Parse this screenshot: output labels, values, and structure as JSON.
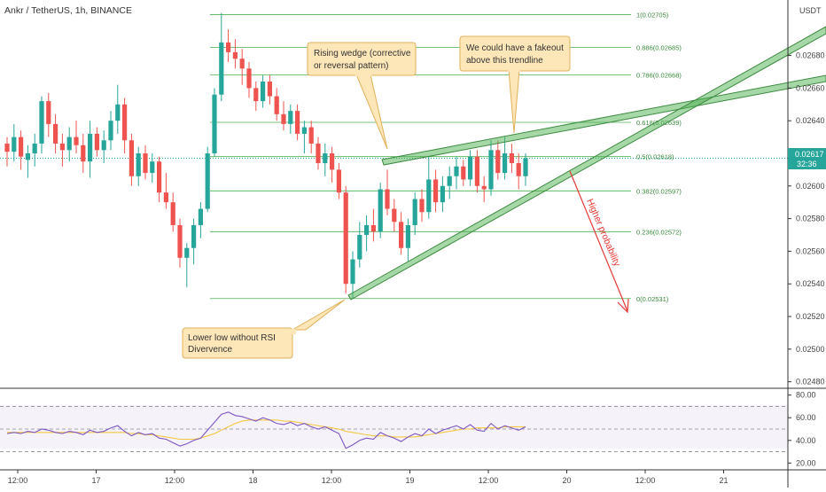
{
  "header": {
    "symbol": "Ankr / TetherUS, 1h, BINANCE"
  },
  "price_axis": {
    "currency": "USDT",
    "ticks": [
      "0.02680",
      "0.02660",
      "0.02640",
      "0.02620",
      "0.02600",
      "0.02580",
      "0.02560",
      "0.02540",
      "0.02520",
      "0.02500",
      "0.02480"
    ],
    "last_price": "0.02617",
    "countdown": "32:36"
  },
  "rsi_axis": {
    "ticks": [
      "80.00",
      "60.00",
      "40.00",
      "20.00"
    ]
  },
  "time_axis": {
    "ticks": [
      "12:00",
      "17",
      "12:00",
      "18",
      "12:00",
      "19",
      "12:00",
      "20",
      "12:00",
      "21"
    ]
  },
  "fib_labels": [
    "1(0.02705)",
    "0.886(0.02685)",
    "0.786(0.02668)",
    "0.618(0.02639)",
    "0.5(0.02618)",
    "0.382(0.02597)",
    "0.236(0.02572)",
    "0(0.02531)"
  ],
  "annotations": {
    "wedge": [
      "Rising wedge (corrective",
      "or reversal pattern)"
    ],
    "fakeout": [
      "We could have a fakeout",
      "above this trendline"
    ],
    "lowerlow": [
      "Lower low without RSI",
      "Divervence"
    ],
    "probability": "Higher probability"
  },
  "colors": {
    "up": "#26a69a",
    "down": "#ef5350",
    "fib": "#4caf50",
    "rsi": "#7e57c2",
    "rsi_ma": "#f5c842",
    "callout_bg": "#fde7b9",
    "callout_border": "#e0b15a"
  },
  "chart_data": {
    "type": "candlestick",
    "title": "Ankr / TetherUS, 1h, BINANCE",
    "ylim": [
      0.02476,
      0.02714
    ],
    "candles": [
      {
        "o": 0.02626,
        "h": 0.0263,
        "l": 0.02612,
        "c": 0.02621
      },
      {
        "o": 0.02621,
        "h": 0.02638,
        "l": 0.02615,
        "c": 0.0263
      },
      {
        "o": 0.0263,
        "h": 0.02634,
        "l": 0.0261,
        "c": 0.02618
      },
      {
        "o": 0.02616,
        "h": 0.02625,
        "l": 0.02605,
        "c": 0.0262
      },
      {
        "o": 0.0262,
        "h": 0.02632,
        "l": 0.02612,
        "c": 0.02626
      },
      {
        "o": 0.02626,
        "h": 0.02655,
        "l": 0.0262,
        "c": 0.02652
      },
      {
        "o": 0.02652,
        "h": 0.02657,
        "l": 0.0263,
        "c": 0.02638
      },
      {
        "o": 0.02638,
        "h": 0.02644,
        "l": 0.0262,
        "c": 0.02626
      },
      {
        "o": 0.02626,
        "h": 0.02632,
        "l": 0.02612,
        "c": 0.02622
      },
      {
        "o": 0.02622,
        "h": 0.02636,
        "l": 0.02615,
        "c": 0.0263
      },
      {
        "o": 0.0263,
        "h": 0.0264,
        "l": 0.0262,
        "c": 0.02625
      },
      {
        "o": 0.02625,
        "h": 0.02632,
        "l": 0.02608,
        "c": 0.02615
      },
      {
        "o": 0.02615,
        "h": 0.0264,
        "l": 0.02605,
        "c": 0.02632
      },
      {
        "o": 0.02632,
        "h": 0.02636,
        "l": 0.02618,
        "c": 0.02622
      },
      {
        "o": 0.02622,
        "h": 0.02634,
        "l": 0.02614,
        "c": 0.02628
      },
      {
        "o": 0.02628,
        "h": 0.02646,
        "l": 0.02622,
        "c": 0.0264
      },
      {
        "o": 0.0264,
        "h": 0.02662,
        "l": 0.02632,
        "c": 0.0265
      },
      {
        "o": 0.0265,
        "h": 0.02654,
        "l": 0.0262,
        "c": 0.02628
      },
      {
        "o": 0.02628,
        "h": 0.02632,
        "l": 0.026,
        "c": 0.02606
      },
      {
        "o": 0.02606,
        "h": 0.02624,
        "l": 0.026,
        "c": 0.0262
      },
      {
        "o": 0.0262,
        "h": 0.02625,
        "l": 0.02604,
        "c": 0.02608
      },
      {
        "o": 0.02608,
        "h": 0.0262,
        "l": 0.02602,
        "c": 0.02615
      },
      {
        "o": 0.02615,
        "h": 0.02618,
        "l": 0.0259,
        "c": 0.02596
      },
      {
        "o": 0.02596,
        "h": 0.02608,
        "l": 0.02586,
        "c": 0.0259
      },
      {
        "o": 0.0259,
        "h": 0.02596,
        "l": 0.02572,
        "c": 0.02576
      },
      {
        "o": 0.02576,
        "h": 0.0258,
        "l": 0.0255,
        "c": 0.02556
      },
      {
        "o": 0.02556,
        "h": 0.02565,
        "l": 0.02538,
        "c": 0.02562
      },
      {
        "o": 0.02562,
        "h": 0.0258,
        "l": 0.02552,
        "c": 0.02576
      },
      {
        "o": 0.02576,
        "h": 0.0259,
        "l": 0.02568,
        "c": 0.02586
      },
      {
        "o": 0.02586,
        "h": 0.02624,
        "l": 0.02584,
        "c": 0.0262
      },
      {
        "o": 0.0262,
        "h": 0.0266,
        "l": 0.02618,
        "c": 0.02656
      },
      {
        "o": 0.02656,
        "h": 0.02706,
        "l": 0.02652,
        "c": 0.02688
      },
      {
        "o": 0.02688,
        "h": 0.02696,
        "l": 0.02676,
        "c": 0.02682
      },
      {
        "o": 0.02682,
        "h": 0.0269,
        "l": 0.02672,
        "c": 0.02678
      },
      {
        "o": 0.02678,
        "h": 0.02684,
        "l": 0.02662,
        "c": 0.02672
      },
      {
        "o": 0.02672,
        "h": 0.02676,
        "l": 0.02654,
        "c": 0.0266
      },
      {
        "o": 0.0266,
        "h": 0.02664,
        "l": 0.02646,
        "c": 0.02652
      },
      {
        "o": 0.02652,
        "h": 0.02668,
        "l": 0.02648,
        "c": 0.02664
      },
      {
        "o": 0.02664,
        "h": 0.02668,
        "l": 0.0265,
        "c": 0.02655
      },
      {
        "o": 0.02655,
        "h": 0.0266,
        "l": 0.0264,
        "c": 0.02644
      },
      {
        "o": 0.02644,
        "h": 0.02652,
        "l": 0.02634,
        "c": 0.02638
      },
      {
        "o": 0.02638,
        "h": 0.0265,
        "l": 0.02632,
        "c": 0.02646
      },
      {
        "o": 0.02646,
        "h": 0.0265,
        "l": 0.02628,
        "c": 0.02632
      },
      {
        "o": 0.02632,
        "h": 0.0264,
        "l": 0.0262,
        "c": 0.02636
      },
      {
        "o": 0.02636,
        "h": 0.0264,
        "l": 0.0262,
        "c": 0.02626
      },
      {
        "o": 0.02626,
        "h": 0.0263,
        "l": 0.0261,
        "c": 0.02614
      },
      {
        "o": 0.02614,
        "h": 0.02626,
        "l": 0.02606,
        "c": 0.0262
      },
      {
        "o": 0.0262,
        "h": 0.02624,
        "l": 0.02602,
        "c": 0.0261
      },
      {
        "o": 0.0261,
        "h": 0.02614,
        "l": 0.02592,
        "c": 0.02596
      },
      {
        "o": 0.02596,
        "h": 0.026,
        "l": 0.02534,
        "c": 0.0254
      },
      {
        "o": 0.0254,
        "h": 0.0256,
        "l": 0.02531,
        "c": 0.02555
      },
      {
        "o": 0.02555,
        "h": 0.02578,
        "l": 0.0255,
        "c": 0.0257
      },
      {
        "o": 0.0257,
        "h": 0.02582,
        "l": 0.0256,
        "c": 0.02576
      },
      {
        "o": 0.02576,
        "h": 0.02586,
        "l": 0.02566,
        "c": 0.02572
      },
      {
        "o": 0.02572,
        "h": 0.02602,
        "l": 0.02568,
        "c": 0.02598
      },
      {
        "o": 0.02598,
        "h": 0.0261,
        "l": 0.02582,
        "c": 0.02586
      },
      {
        "o": 0.02586,
        "h": 0.02592,
        "l": 0.02572,
        "c": 0.02578
      },
      {
        "o": 0.02578,
        "h": 0.02584,
        "l": 0.02558,
        "c": 0.02562
      },
      {
        "o": 0.02562,
        "h": 0.0258,
        "l": 0.02554,
        "c": 0.02576
      },
      {
        "o": 0.02576,
        "h": 0.02596,
        "l": 0.0257,
        "c": 0.02592
      },
      {
        "o": 0.02592,
        "h": 0.02598,
        "l": 0.02578,
        "c": 0.02584
      },
      {
        "o": 0.02584,
        "h": 0.02618,
        "l": 0.0258,
        "c": 0.02604
      },
      {
        "o": 0.02604,
        "h": 0.0261,
        "l": 0.02584,
        "c": 0.0259
      },
      {
        "o": 0.0259,
        "h": 0.02606,
        "l": 0.02584,
        "c": 0.026
      },
      {
        "o": 0.026,
        "h": 0.02612,
        "l": 0.02592,
        "c": 0.02606
      },
      {
        "o": 0.02606,
        "h": 0.02618,
        "l": 0.02598,
        "c": 0.02612
      },
      {
        "o": 0.02612,
        "h": 0.02616,
        "l": 0.026,
        "c": 0.02604
      },
      {
        "o": 0.02604,
        "h": 0.02622,
        "l": 0.026,
        "c": 0.02618
      },
      {
        "o": 0.02618,
        "h": 0.02622,
        "l": 0.02596,
        "c": 0.026
      },
      {
        "o": 0.026,
        "h": 0.02606,
        "l": 0.0259,
        "c": 0.02598
      },
      {
        "o": 0.02598,
        "h": 0.02628,
        "l": 0.02594,
        "c": 0.02622
      },
      {
        "o": 0.02622,
        "h": 0.02628,
        "l": 0.02604,
        "c": 0.02608
      },
      {
        "o": 0.02608,
        "h": 0.0263,
        "l": 0.02604,
        "c": 0.0262
      },
      {
        "o": 0.0262,
        "h": 0.02626,
        "l": 0.02608,
        "c": 0.02614
      },
      {
        "o": 0.02614,
        "h": 0.0262,
        "l": 0.02598,
        "c": 0.02606
      },
      {
        "o": 0.02606,
        "h": 0.0262,
        "l": 0.026,
        "c": 0.02617
      }
    ],
    "fib_levels": [
      {
        "ratio": 1,
        "price": 0.02705
      },
      {
        "ratio": 0.886,
        "price": 0.02685
      },
      {
        "ratio": 0.786,
        "price": 0.02668
      },
      {
        "ratio": 0.618,
        "price": 0.02639
      },
      {
        "ratio": 0.5,
        "price": 0.02618
      },
      {
        "ratio": 0.382,
        "price": 0.02597
      },
      {
        "ratio": 0.236,
        "price": 0.02572
      },
      {
        "ratio": 0,
        "price": 0.02531
      }
    ],
    "rsi": {
      "ylim": [
        14,
        86
      ],
      "bands": [
        70,
        50,
        30
      ],
      "values": [
        46,
        47,
        46,
        48,
        47,
        50,
        49,
        47,
        46,
        48,
        47,
        45,
        49,
        47,
        48,
        51,
        53,
        48,
        44,
        47,
        45,
        46,
        42,
        41,
        38,
        35,
        37,
        40,
        42,
        49,
        56,
        63,
        65,
        62,
        61,
        59,
        57,
        60,
        58,
        55,
        54,
        56,
        53,
        55,
        52,
        50,
        52,
        49,
        46,
        33,
        36,
        40,
        42,
        41,
        47,
        44,
        42,
        39,
        43,
        46,
        44,
        50,
        46,
        49,
        51,
        53,
        50,
        54,
        49,
        48,
        55,
        50,
        53,
        51,
        49,
        52
      ],
      "ma": [
        47,
        47,
        47,
        47,
        47,
        47,
        47,
        47,
        47,
        47,
        47,
        47,
        47,
        47,
        47,
        47,
        47,
        47,
        46,
        46,
        45,
        45,
        44,
        43,
        42,
        41,
        41,
        41,
        42,
        44,
        46,
        49,
        52,
        55,
        57,
        58,
        58,
        58,
        58,
        58,
        57,
        57,
        56,
        55,
        54,
        53,
        52,
        51,
        50,
        48,
        47,
        46,
        45,
        44,
        44,
        44,
        43,
        43,
        43,
        43,
        44,
        45,
        46,
        47,
        48,
        49,
        50,
        50,
        51,
        51,
        51,
        51,
        52,
        52,
        52,
        52
      ]
    }
  }
}
